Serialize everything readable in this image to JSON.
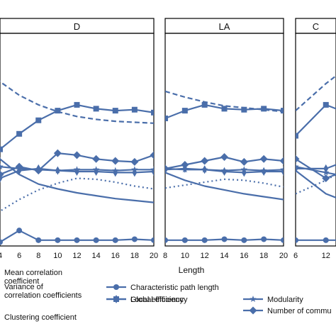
{
  "chart_data": {
    "type": "line",
    "xlabel": "Length",
    "color": "#4a6eaa",
    "panels": [
      {
        "title": "D",
        "xlim": [
          4,
          20
        ],
        "x": [
          4,
          6,
          8,
          10,
          12,
          14,
          16,
          18,
          20
        ],
        "tick_labels": [
          "4",
          "6",
          "8",
          "10",
          "12",
          "14",
          "16",
          "18",
          "20"
        ],
        "series": [
          {
            "key": "mean_corr",
            "values": [
              0.7,
              0.63,
              0.58,
              0.545,
              0.52,
              0.505,
              0.495,
              0.49,
              0.485
            ],
            "left_value": 0.78,
            "left_x": 2.6
          },
          {
            "key": "local_eff",
            "values": [
              0.35,
              0.43,
              0.5,
              0.55,
              0.58,
              0.56,
              0.55,
              0.555,
              0.54
            ],
            "left_value": 0.4,
            "left_x": 3.2
          },
          {
            "key": "number_comm",
            "values": [
              0.22,
              0.26,
              0.24,
              0.33,
              0.32,
              0.3,
              0.29,
              0.285,
              0.32
            ],
            "left_value": 0.33,
            "left_x": 3.2
          },
          {
            "key": "global_eff",
            "values": [
              0.2,
              0.24,
              0.25,
              0.24,
              0.235,
              0.235,
              0.23,
              0.23,
              0.235
            ]
          },
          {
            "key": "modularity",
            "values": [
              0.26,
              0.25,
              0.245,
              0.24,
              0.245,
              0.245,
              0.24,
              0.245,
              0.245
            ]
          },
          {
            "key": "variance",
            "values": [
              0.3,
              0.22,
              0.17,
              0.145,
              0.125,
              0.11,
              0.095,
              0.085,
              0.075
            ],
            "left_value": 0.42,
            "left_x": 3.0
          },
          {
            "key": "clustering",
            "values": [
              0.03,
              0.09,
              0.14,
              0.175,
              0.2,
              0.195,
              0.18,
              0.16,
              0.145
            ],
            "left_value": 0.0,
            "left_x": 3.0
          },
          {
            "key": "char_path",
            "values": [
              -0.13,
              -0.07,
              -0.12,
              -0.12,
              -0.12,
              -0.12,
              -0.12,
              -0.115,
              -0.12
            ]
          }
        ]
      },
      {
        "title": "LA",
        "xlim": [
          8,
          20
        ],
        "x": [
          8,
          10,
          12,
          14,
          16,
          18,
          20
        ],
        "tick_labels": [
          "8",
          "10",
          "12",
          "14",
          "16",
          "18",
          "20"
        ],
        "series": [
          {
            "key": "mean_corr",
            "values": [
              0.65,
              0.62,
              0.595,
              0.575,
              0.565,
              0.555,
              0.545
            ]
          },
          {
            "key": "local_eff",
            "values": [
              0.51,
              0.55,
              0.58,
              0.56,
              0.555,
              0.56,
              0.55
            ]
          },
          {
            "key": "number_comm",
            "values": [
              0.25,
              0.27,
              0.29,
              0.31,
              0.285,
              0.3,
              0.29
            ]
          },
          {
            "key": "global_eff",
            "values": [
              0.245,
              0.25,
              0.245,
              0.235,
              0.23,
              0.235,
              0.235
            ]
          },
          {
            "key": "modularity",
            "values": [
              0.25,
              0.245,
              0.245,
              0.24,
              0.245,
              0.24,
              0.245
            ]
          },
          {
            "key": "variance",
            "values": [
              0.23,
              0.19,
              0.16,
              0.14,
              0.12,
              0.105,
              0.09
            ]
          },
          {
            "key": "clustering",
            "values": [
              0.15,
              0.165,
              0.18,
              0.195,
              0.19,
              0.175,
              0.155
            ]
          },
          {
            "key": "char_path",
            "values": [
              -0.12,
              -0.12,
              -0.12,
              -0.115,
              -0.12,
              -0.115,
              -0.12
            ]
          }
        ]
      },
      {
        "title": "C",
        "xlim": [
          6,
          14
        ],
        "x": [
          6,
          12
        ],
        "tick_labels": [
          "6",
          "12"
        ],
        "series": [
          {
            "key": "mean_corr",
            "values": [
              0.55,
              0.69
            ],
            "right_value": 0.73,
            "right_x": 14
          },
          {
            "key": "local_eff",
            "values": [
              0.42,
              0.58
            ],
            "right_value": 0.56,
            "right_x": 14
          },
          {
            "key": "number_comm",
            "values": [
              0.3,
              0.2
            ],
            "right_value": 0.22,
            "right_x": 14
          },
          {
            "key": "global_eff",
            "values": [
              0.25,
              0.25
            ],
            "right_value": 0.27,
            "right_x": 14
          },
          {
            "key": "modularity",
            "values": [
              0.26,
              0.23
            ],
            "right_value": 0.22,
            "right_x": 14
          },
          {
            "key": "variance",
            "values": [
              0.24,
              0.12
            ],
            "right_value": 0.1,
            "right_x": 14
          },
          {
            "key": "clustering",
            "values": [
              0.12,
              0.19
            ],
            "right_value": 0.22,
            "right_x": 14
          },
          {
            "key": "char_path",
            "values": [
              -0.12,
              -0.12
            ],
            "right_value": -0.12,
            "right_x": 14
          }
        ]
      }
    ],
    "legend": [
      {
        "key": "mean_corr",
        "label": "Mean correlation coefficient",
        "lines": [
          "Mean correlation",
          "coefficient"
        ],
        "style": "dashed",
        "marker": "none"
      },
      {
        "key": "variance",
        "label": "Variance of correlation coefficients",
        "lines": [
          "Variance of",
          "correlation coefficients"
        ],
        "style": "solid",
        "marker": "none"
      },
      {
        "key": "clustering",
        "label": "Clustering coefficient",
        "lines": [
          "Clustering coefficient"
        ],
        "style": "dotted",
        "marker": "none"
      },
      {
        "key": "char_path",
        "label": "Characteristic path length",
        "lines": [
          "Characteristic path length"
        ],
        "style": "solid",
        "marker": "circle"
      },
      {
        "key": "global_eff",
        "label": "Global efficiency",
        "lines": [
          "Global efficiency"
        ],
        "style": "solid",
        "marker": "thin-diamond"
      },
      {
        "key": "local_eff",
        "label": "Local efficiency",
        "lines": [
          "Local efficiency"
        ],
        "style": "solid",
        "marker": "square"
      },
      {
        "key": "modularity",
        "label": "Modularity",
        "lines": [
          "Modularity"
        ],
        "style": "solid",
        "marker": "star"
      },
      {
        "key": "number_comm",
        "label": "Number of commu",
        "lines": [
          "Number of commu"
        ],
        "style": "solid",
        "marker": "diamond"
      }
    ]
  }
}
